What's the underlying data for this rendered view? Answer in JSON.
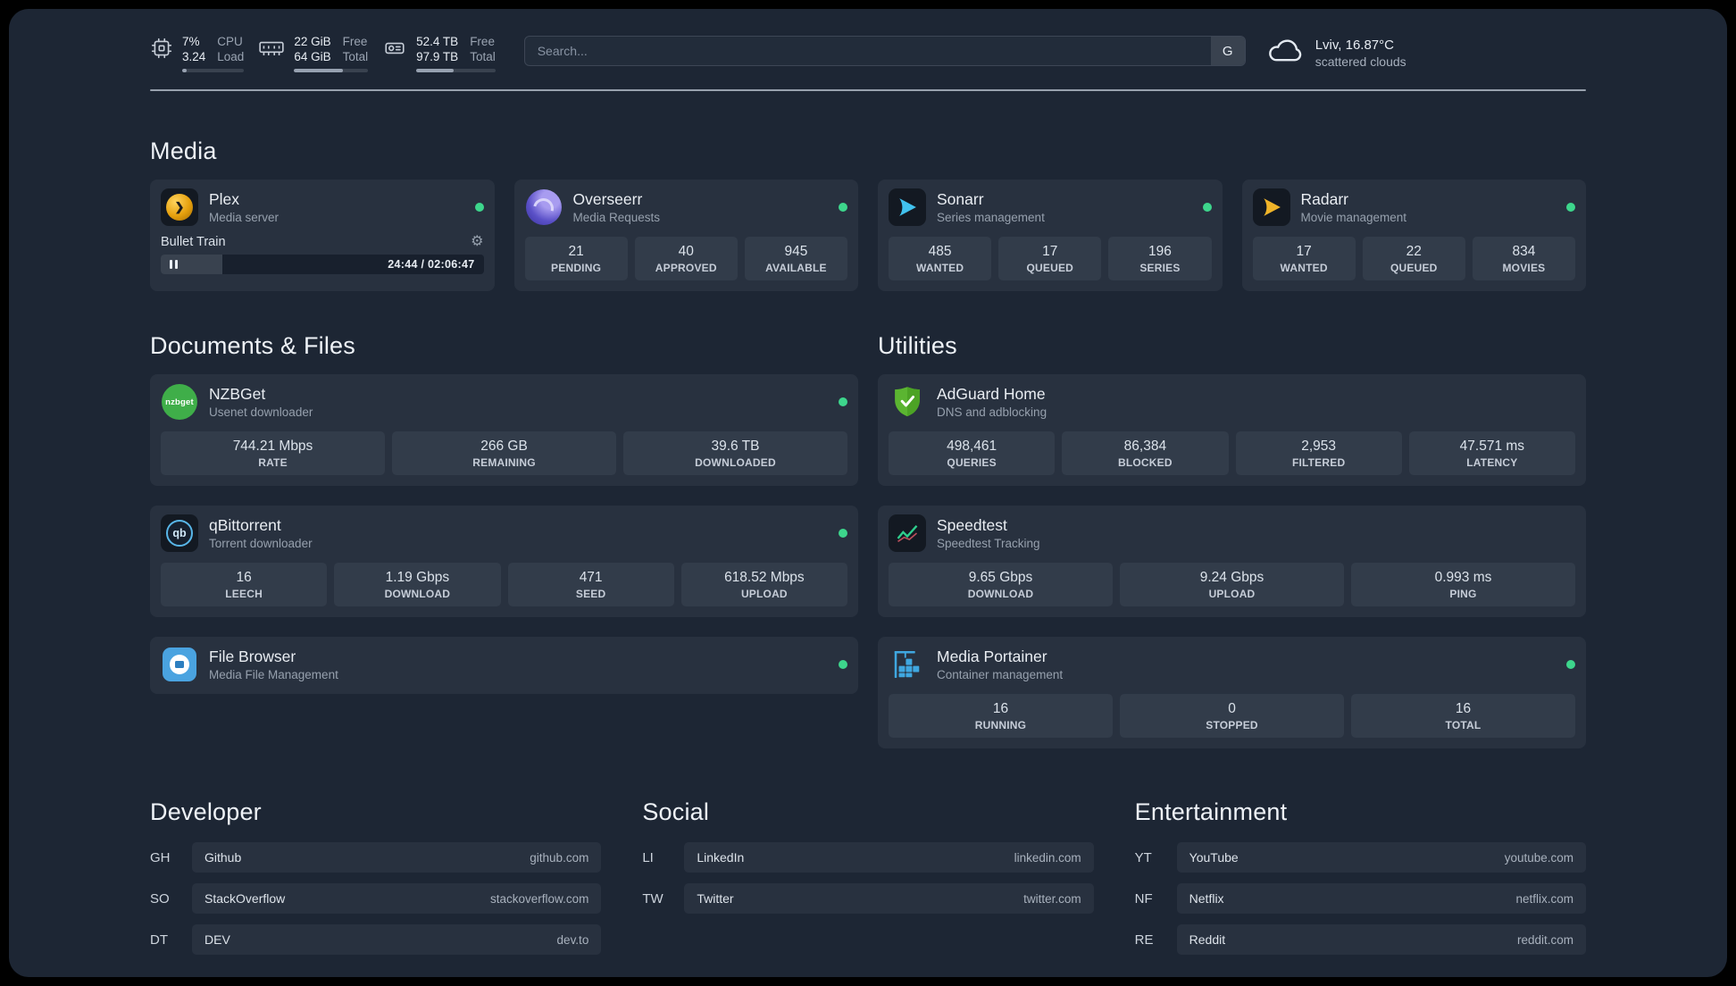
{
  "topbar": {
    "cpu": {
      "value_top": "7%",
      "value_bottom": "3.24",
      "label_top": "CPU",
      "label_bottom": "Load",
      "percent": 7
    },
    "memory": {
      "value_top": "22 GiB",
      "value_bottom": "64 GiB",
      "label_top": "Free",
      "label_bottom": "Total",
      "percent": 66
    },
    "disk": {
      "value_top": "52.4 TB",
      "value_bottom": "97.9 TB",
      "label_top": "Free",
      "label_bottom": "Total",
      "percent": 47
    },
    "search": {
      "placeholder": "Search...",
      "button_label": "G"
    },
    "weather": {
      "location": "Lviv, 16.87°C",
      "condition": "scattered clouds"
    }
  },
  "icons": {
    "plex_chevron": "❯",
    "gear": "⚙",
    "nzbget_text": "nzbget",
    "qbittorrent_text": "qb"
  },
  "groups": {
    "media": {
      "title": "Media",
      "plex": {
        "name": "Plex",
        "description": "Media server",
        "status": "online",
        "player": {
          "title": "Bullet Train",
          "time": "24:44 / 02:06:47",
          "progress_percent": 19
        }
      },
      "overseerr": {
        "name": "Overseerr",
        "description": "Media Requests",
        "status": "online",
        "stats": [
          {
            "value": "21",
            "label": "PENDING"
          },
          {
            "value": "40",
            "label": "APPROVED"
          },
          {
            "value": "945",
            "label": "AVAILABLE"
          }
        ]
      },
      "sonarr": {
        "name": "Sonarr",
        "description": "Series management",
        "status": "online",
        "stats": [
          {
            "value": "485",
            "label": "WANTED"
          },
          {
            "value": "17",
            "label": "QUEUED"
          },
          {
            "value": "196",
            "label": "SERIES"
          }
        ]
      },
      "radarr": {
        "name": "Radarr",
        "description": "Movie management",
        "status": "online",
        "stats": [
          {
            "value": "17",
            "label": "WANTED"
          },
          {
            "value": "22",
            "label": "QUEUED"
          },
          {
            "value": "834",
            "label": "MOVIES"
          }
        ]
      }
    },
    "documents": {
      "title": "Documents & Files",
      "nzbget": {
        "name": "NZBGet",
        "description": "Usenet downloader",
        "status": "online",
        "stats": [
          {
            "value": "744.21 Mbps",
            "label": "RATE"
          },
          {
            "value": "266 GB",
            "label": "REMAINING"
          },
          {
            "value": "39.6 TB",
            "label": "DOWNLOADED"
          }
        ]
      },
      "qbittorrent": {
        "name": "qBittorrent",
        "description": "Torrent downloader",
        "status": "online",
        "stats": [
          {
            "value": "16",
            "label": "LEECH"
          },
          {
            "value": "1.19 Gbps",
            "label": "DOWNLOAD"
          },
          {
            "value": "471",
            "label": "SEED"
          },
          {
            "value": "618.52 Mbps",
            "label": "UPLOAD"
          }
        ]
      },
      "filebrowser": {
        "name": "File Browser",
        "description": "Media File Management",
        "status": "online"
      }
    },
    "utilities": {
      "title": "Utilities",
      "adguard": {
        "name": "AdGuard Home",
        "description": "DNS and adblocking",
        "stats": [
          {
            "value": "498,461",
            "label": "QUERIES"
          },
          {
            "value": "86,384",
            "label": "BLOCKED"
          },
          {
            "value": "2,953",
            "label": "FILTERED"
          },
          {
            "value": "47.571 ms",
            "label": "LATENCY"
          }
        ]
      },
      "speedtest": {
        "name": "Speedtest",
        "description": "Speedtest Tracking",
        "stats": [
          {
            "value": "9.65 Gbps",
            "label": "DOWNLOAD"
          },
          {
            "value": "9.24 Gbps",
            "label": "UPLOAD"
          },
          {
            "value": "0.993 ms",
            "label": "PING"
          }
        ]
      },
      "portainer": {
        "name": "Media Portainer",
        "description": "Container management",
        "status": "online",
        "stats": [
          {
            "value": "16",
            "label": "RUNNING"
          },
          {
            "value": "0",
            "label": "STOPPED"
          },
          {
            "value": "16",
            "label": "TOTAL"
          }
        ]
      }
    },
    "bookmarks": [
      {
        "title": "Developer",
        "items": [
          {
            "abbr": "GH",
            "name": "Github",
            "domain": "github.com"
          },
          {
            "abbr": "SO",
            "name": "StackOverflow",
            "domain": "stackoverflow.com"
          },
          {
            "abbr": "DT",
            "name": "DEV",
            "domain": "dev.to"
          }
        ]
      },
      {
        "title": "Social",
        "items": [
          {
            "abbr": "LI",
            "name": "LinkedIn",
            "domain": "linkedin.com"
          },
          {
            "abbr": "TW",
            "name": "Twitter",
            "domain": "twitter.com"
          }
        ]
      },
      {
        "title": "Entertainment",
        "items": [
          {
            "abbr": "YT",
            "name": "YouTube",
            "domain": "youtube.com"
          },
          {
            "abbr": "NF",
            "name": "Netflix",
            "domain": "netflix.com"
          },
          {
            "abbr": "RE",
            "name": "Reddit",
            "domain": "reddit.com"
          }
        ]
      }
    ]
  },
  "colors": {
    "background": "#1d2634",
    "card": "#28313f",
    "tile": "#323c4a",
    "status_online": "#3dd68c"
  }
}
